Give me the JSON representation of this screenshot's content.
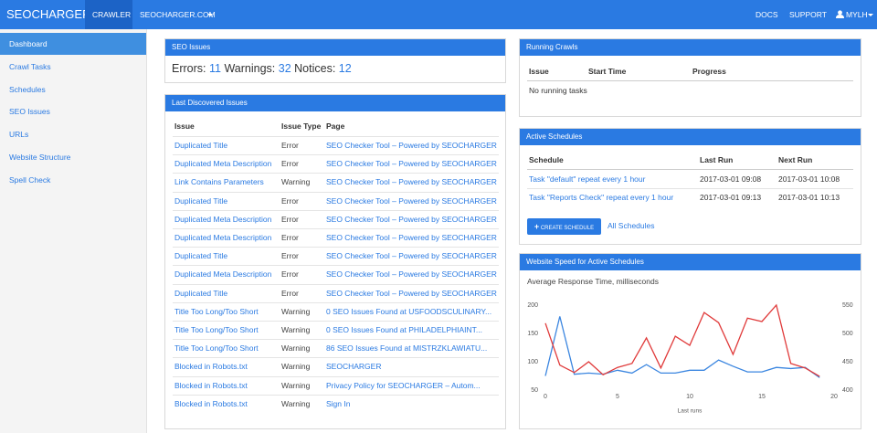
{
  "navbar": {
    "brand": "SEOCHARGER",
    "items": [
      "CRAWLER",
      "SEOCHARGER.COM"
    ],
    "right": [
      "DOCS",
      "SUPPORT",
      "MYLH"
    ]
  },
  "sidebar": {
    "items": [
      "Dashboard",
      "Crawl Tasks",
      "Schedules",
      "SEO Issues",
      "URLs",
      "Website Structure",
      "Spell Check"
    ]
  },
  "seo_issues": {
    "title": "SEO Issues",
    "counts": [
      {
        "label": "Errors:",
        "value": 11
      },
      {
        "label": "Warnings:",
        "value": 32
      },
      {
        "label": "Notices:",
        "value": 12
      }
    ]
  },
  "last_issues": {
    "title": "Last Discovered Issues",
    "columns": [
      "Issue",
      "Issue Type",
      "Page"
    ],
    "rows": [
      [
        "Duplicated Title",
        "Error",
        "SEO Checker Tool – Powered by SEOCHARGER"
      ],
      [
        "Duplicated Meta Description",
        "Error",
        "SEO Checker Tool – Powered by SEOCHARGER"
      ],
      [
        "Link Contains Parameters",
        "Warning",
        "SEO Checker Tool – Powered by SEOCHARGER"
      ],
      [
        "Duplicated Title",
        "Error",
        "SEO Checker Tool – Powered by SEOCHARGER"
      ],
      [
        "Duplicated Meta Description",
        "Error",
        "SEO Checker Tool – Powered by SEOCHARGER"
      ],
      [
        "Duplicated Meta Description",
        "Error",
        "SEO Checker Tool – Powered by SEOCHARGER"
      ],
      [
        "Duplicated Title",
        "Error",
        "SEO Checker Tool – Powered by SEOCHARGER"
      ],
      [
        "Duplicated Meta Description",
        "Error",
        "SEO Checker Tool – Powered by SEOCHARGER"
      ],
      [
        "Duplicated Title",
        "Error",
        "SEO Checker Tool – Powered by SEOCHARGER"
      ],
      [
        "Title Too Long/Too Short",
        "Warning",
        "0 SEO Issues Found at USFOODSCULINARY..."
      ],
      [
        "Title Too Long/Too Short",
        "Warning",
        "0 SEO Issues Found at PHILADELPHIAINT..."
      ],
      [
        "Title Too Long/Too Short",
        "Warning",
        "86 SEO Issues Found at MISTRZKLAWIATU..."
      ],
      [
        "Blocked in Robots.txt",
        "Warning",
        "SEOCHARGER"
      ],
      [
        "Blocked in Robots.txt",
        "Warning",
        "Privacy Policy for SEOCHARGER – Autom..."
      ],
      [
        "Blocked in Robots.txt",
        "Warning",
        "Sign In"
      ]
    ]
  },
  "running_crawls": {
    "title": "Running Crawls",
    "columns": [
      "Issue",
      "Start Time",
      "Progress"
    ],
    "empty": "No running tasks"
  },
  "active_schedules": {
    "title": "Active Schedules",
    "columns": [
      "Schedule",
      "Last Run",
      "Next Run"
    ],
    "rows": [
      [
        "Task \"default\" repeat every 1 hour",
        "2017-03-01 09:08",
        "2017-03-01 10:08"
      ],
      [
        "Task \"Reports Check\" repeat every 1 hour",
        "2017-03-01 09:13",
        "2017-03-01 10:13"
      ]
    ],
    "button": "CREATE SCHEDULE",
    "link": "All Schedules"
  },
  "chart_data": {
    "type": "line",
    "title": "Website Speed for Active Schedules",
    "subtitle": "Average Response Time, milliseconds",
    "x_label": "Last runs",
    "x": [
      0,
      1,
      2,
      3,
      4,
      5,
      6,
      7,
      8,
      9,
      10,
      11,
      12,
      13,
      14,
      15,
      16,
      17,
      18,
      19
    ],
    "xlim": [
      0,
      20
    ],
    "xticks": [
      0,
      5,
      10,
      15,
      20
    ],
    "ylim": [
      50,
      200
    ],
    "yticks": [
      50,
      100,
      150,
      200
    ],
    "y2lim": [
      400,
      550
    ],
    "y2ticks": [
      400,
      450,
      500,
      550
    ],
    "grid": false,
    "series": [
      {
        "color": "#3b86e0",
        "values": [
          75,
          180,
          78,
          80,
          78,
          85,
          80,
          95,
          80,
          80,
          85,
          85,
          103,
          92,
          82,
          82,
          90,
          88,
          90,
          72
        ]
      },
      {
        "color": "#e03a3a",
        "axis": "y2",
        "values": [
          518,
          444,
          431,
          450,
          427,
          440,
          447,
          492,
          439,
          495,
          479,
          537,
          519,
          463,
          527,
          521,
          550,
          447,
          439,
          424
        ]
      }
    ]
  }
}
